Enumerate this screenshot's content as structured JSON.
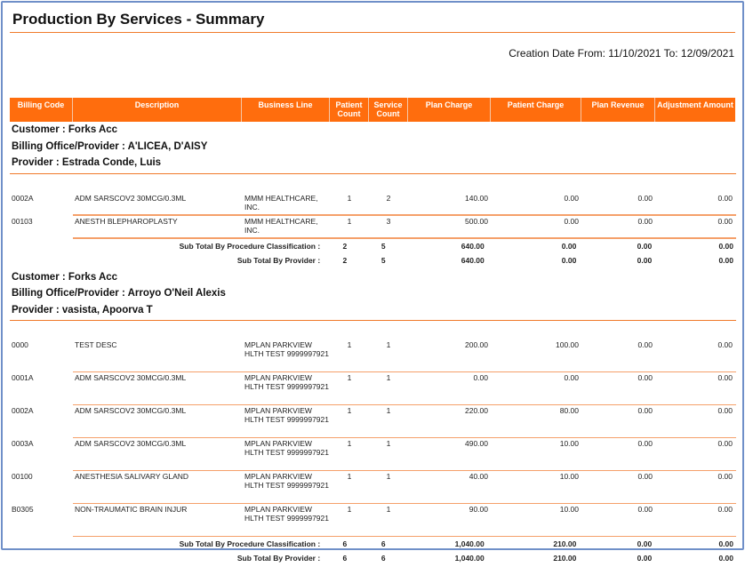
{
  "title": "Production By Services - Summary",
  "creation_date": "Creation Date From: 11/10/2021  To: 12/09/2021",
  "columns": [
    "Billing Code",
    "Description",
    "Business Line",
    "Patient Count",
    "Service Count",
    "Plan Charge",
    "Patient Charge",
    "Plan Revenue",
    "Adjustment Amount"
  ],
  "groups": [
    {
      "customer": "Customer : Forks Acc",
      "billing_office": "Billing Office/Provider : A'LICEA, D'AISY",
      "provider": "Provider : Estrada Conde, Luis",
      "rows": [
        [
          "0002A",
          "ADM SARSCOV2 30MCG/0.3ML",
          "MMM HEALTHCARE, INC.",
          "1",
          "2",
          "140.00",
          "0.00",
          "0.00",
          "0.00"
        ],
        [
          "00103",
          "ANESTH BLEPHAROPLASTY",
          "MMM HEALTHCARE, INC.",
          "1",
          "3",
          "500.00",
          "0.00",
          "0.00",
          "0.00"
        ]
      ],
      "subtotals": [
        [
          "Sub Total By Procedure Classification :",
          "2",
          "5",
          "640.00",
          "0.00",
          "0.00",
          "0.00"
        ],
        [
          "Sub Total By Provider :",
          "2",
          "5",
          "640.00",
          "0.00",
          "0.00",
          "0.00"
        ]
      ]
    },
    {
      "customer": "Customer : Forks Acc",
      "billing_office": "Billing Office/Provider : Arroyo O'Neil Alexis",
      "provider": "Provider : vasista, Apoorva T",
      "rows": [
        [
          "0000",
          "TEST DESC",
          "MPLAN PARKVIEW HLTH TEST 9999997921",
          "1",
          "1",
          "200.00",
          "100.00",
          "0.00",
          "0.00"
        ],
        [
          "0001A",
          "ADM SARSCOV2 30MCG/0.3ML",
          "MPLAN PARKVIEW HLTH TEST 9999997921",
          "1",
          "1",
          "0.00",
          "0.00",
          "0.00",
          "0.00"
        ],
        [
          "0002A",
          "ADM SARSCOV2 30MCG/0.3ML",
          "MPLAN PARKVIEW HLTH TEST 9999997921",
          "1",
          "1",
          "220.00",
          "80.00",
          "0.00",
          "0.00"
        ],
        [
          "0003A",
          "ADM SARSCOV2 30MCG/0.3ML",
          "MPLAN PARKVIEW HLTH TEST 9999997921",
          "1",
          "1",
          "490.00",
          "10.00",
          "0.00",
          "0.00"
        ],
        [
          "00100",
          "ANESTHESIA SALIVARY GLAND",
          "MPLAN PARKVIEW HLTH TEST 9999997921",
          "1",
          "1",
          "40.00",
          "10.00",
          "0.00",
          "0.00"
        ],
        [
          "B0305",
          "NON-TRAUMATIC BRAIN INJUR",
          "MPLAN PARKVIEW HLTH TEST 9999997921",
          "1",
          "1",
          "90.00",
          "10.00",
          "0.00",
          "0.00"
        ]
      ],
      "subtotals": [
        [
          "Sub Total By Procedure Classification :",
          "6",
          "6",
          "1,040.00",
          "210.00",
          "0.00",
          "0.00"
        ],
        [
          "Sub Total By Provider :",
          "6",
          "6",
          "1,040.00",
          "210.00",
          "0.00",
          "0.00"
        ]
      ]
    }
  ]
}
